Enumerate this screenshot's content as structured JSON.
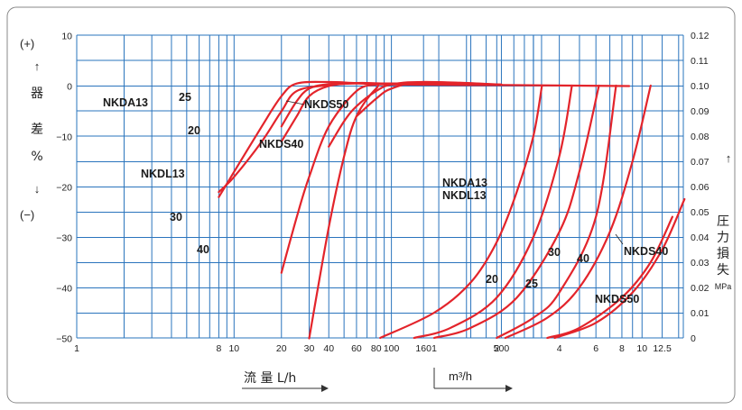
{
  "chart_data": {
    "type": "line",
    "title": "",
    "axes": {
      "left": {
        "unit_top": "(+)",
        "unit_bottom": "(−)",
        "label_chars": [
          "器",
          "差",
          "%"
        ],
        "ticks": [
          "10",
          "0",
          "−10",
          "−20",
          "−30",
          "−40",
          "−50"
        ],
        "ylim": [
          -50,
          10
        ]
      },
      "right": {
        "label_chars": [
          "圧",
          "力",
          "損",
          "失"
        ],
        "unit": "MPa",
        "ticks": [
          "0.12",
          "0.11",
          "0.10",
          "0.09",
          "0.08",
          "0.07",
          "0.06",
          "0.05",
          "0.04",
          "0.03",
          "0.02",
          "0.01",
          "0"
        ],
        "ylim": [
          0,
          0.12
        ]
      },
      "bottom_left": {
        "label": "流 量 L/h",
        "ticks": [
          "1",
          "8",
          "10",
          "20",
          "30",
          "40",
          "60",
          "80",
          "100",
          "160",
          "500"
        ]
      },
      "bottom_right": {
        "label": "m³/h",
        "ticks": [
          "1",
          "2",
          "4",
          "6",
          "8",
          "10",
          "12.5"
        ]
      }
    },
    "error_series": [
      {
        "name": "NKDA13",
        "x_lph": [
          8,
          10,
          15,
          20,
          25,
          40,
          60,
          100,
          500
        ],
        "y_pct": [
          -22,
          -17,
          -8,
          -2,
          0.5,
          0.8,
          0.6,
          0.4,
          0.2
        ]
      },
      {
        "name": "NKDL13",
        "x_lph": [
          8,
          10,
          15,
          20,
          25,
          40,
          60,
          100,
          500
        ],
        "y_pct": [
          -21,
          -18,
          -11,
          -5,
          -1,
          0.2,
          0.5,
          0.3,
          0.2
        ]
      },
      {
        "name": "20",
        "x_lph": [
          20,
          25,
          30,
          40,
          60,
          100,
          500
        ],
        "y_pct": [
          -8,
          -3,
          -0.5,
          0.4,
          0.6,
          0.4,
          0.2
        ]
      },
      {
        "name": "25",
        "x_lph": [
          20,
          25,
          30,
          40,
          60,
          100,
          500
        ],
        "y_pct": [
          -11,
          -6,
          -2,
          0,
          0.6,
          0.5,
          0.2
        ]
      },
      {
        "name": "30",
        "x_lph": [
          20,
          25,
          30,
          40,
          60,
          80,
          100,
          500
        ],
        "y_pct": [
          -37,
          -26,
          -18,
          -8,
          -1,
          0.3,
          0.5,
          0.2
        ]
      },
      {
        "name": "40",
        "x_lph": [
          30,
          40,
          50,
          60,
          80,
          100,
          500
        ],
        "y_pct": [
          -50,
          -28,
          -14,
          -6,
          -0.5,
          0.5,
          0.2
        ]
      },
      {
        "name": "NKDS40",
        "x_lph": [
          40,
          50,
          60,
          80,
          100,
          160,
          500
        ],
        "y_pct": [
          -12,
          -7,
          -4,
          -1,
          0.3,
          0.8,
          0.3
        ]
      },
      {
        "name": "NKDS50",
        "x_lph": [
          60,
          80,
          100,
          160,
          500
        ],
        "y_pct": [
          -6,
          -2.5,
          -0.5,
          0.8,
          0.3
        ]
      }
    ],
    "pressure_loss_series": [
      {
        "name": "NKDA13 NKDL13",
        "x_m3h": [
          0.55,
          1.0,
          1.5,
          2.0,
          2.5,
          3.0,
          3.3
        ],
        "y_mpa": [
          0.0,
          0.01,
          0.022,
          0.038,
          0.058,
          0.08,
          0.1
        ]
      },
      {
        "name": "20",
        "x_m3h": [
          0.8,
          1.2,
          2.0,
          3.0,
          4.0,
          4.6
        ],
        "y_mpa": [
          0.0,
          0.004,
          0.016,
          0.04,
          0.072,
          0.1
        ]
      },
      {
        "name": "25",
        "x_m3h": [
          1.0,
          1.5,
          2.5,
          4.0,
          5.0,
          6.2
        ],
        "y_mpa": [
          0.0,
          0.004,
          0.016,
          0.042,
          0.066,
          0.1
        ]
      },
      {
        "name": "30",
        "x_m3h": [
          2.0,
          3.0,
          4.0,
          6.0,
          7.5
        ],
        "y_mpa": [
          0.0,
          0.008,
          0.018,
          0.048,
          0.1
        ]
      },
      {
        "name": "40",
        "x_m3h": [
          2.2,
          3.5,
          5.0,
          7.0,
          9.0,
          11.0
        ],
        "y_mpa": [
          0.0,
          0.008,
          0.02,
          0.042,
          0.07,
          0.1
        ]
      },
      {
        "name": "NKDS40",
        "x_m3h": [
          3.5,
          5.0,
          8.0,
          11.0,
          14.0,
          17.0,
          22.0
        ],
        "y_mpa": [
          0.0,
          0.004,
          0.016,
          0.03,
          0.048,
          0.07,
          0.1
        ]
      },
      {
        "name": "NKDS50",
        "x_m3h": [
          3.8,
          6.0,
          9.0,
          12.5,
          16.0,
          20.0,
          24.0
        ],
        "y_mpa": [
          0.0,
          0.006,
          0.018,
          0.035,
          0.055,
          0.078,
          0.1
        ]
      }
    ],
    "labels": [
      "NKDA13",
      "NKDL13",
      "25",
      "20",
      "30",
      "40",
      "NKDS50",
      "NKDS40",
      "NKDA13",
      "NKDL13",
      "20",
      "25",
      "30",
      "40",
      "NKDS40",
      "NKDS50"
    ],
    "grid": true,
    "colors": {
      "grid": "#2a74bd",
      "curve": "#e3242b"
    }
  }
}
